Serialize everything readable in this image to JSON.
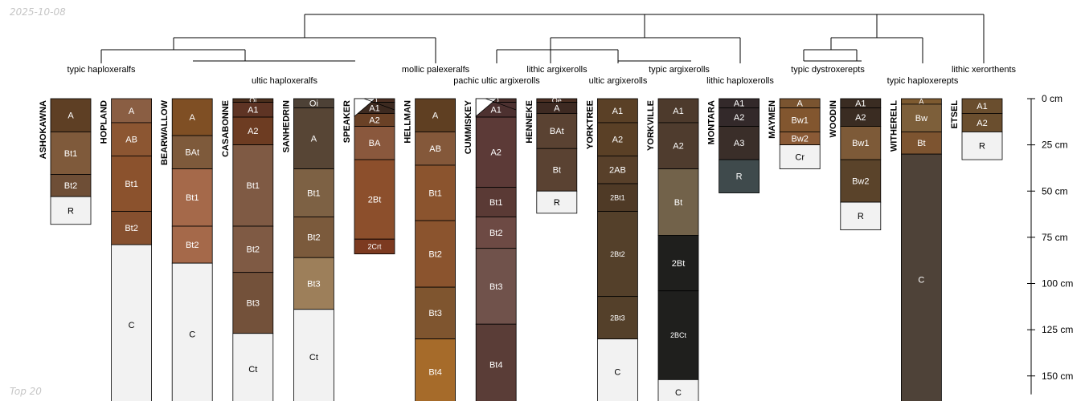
{
  "date_label": "2025-10-08",
  "footer_label": "Top 20",
  "depth_axis": {
    "unit": "cm",
    "max_depth": 160,
    "ticks": [
      {
        "value": 0,
        "label": "0 cm"
      },
      {
        "value": 25,
        "label": "25 cm"
      },
      {
        "value": 50,
        "label": "50 cm"
      },
      {
        "value": 75,
        "label": "75 cm"
      },
      {
        "value": 100,
        "label": "100 cm"
      },
      {
        "value": 125,
        "label": "125 cm"
      },
      {
        "value": 150,
        "label": "150 cm"
      }
    ]
  },
  "taxa": [
    {
      "label": "typic haploxeralfs"
    },
    {
      "label": "ultic haploxeralfs"
    },
    {
      "label": "mollic palexeralfs"
    },
    {
      "label": "pachic ultic argixerolls"
    },
    {
      "label": "lithic argixerolls"
    },
    {
      "label": "ultic argixerolls"
    },
    {
      "label": "typic argixerolls"
    },
    {
      "label": "lithic haploxerolls"
    },
    {
      "label": "typic dystroxerepts"
    },
    {
      "label": "typic haploxerepts"
    },
    {
      "label": "lithic xerorthents"
    }
  ],
  "profiles": [
    {
      "name": "ASHOKAWNA",
      "horizons": [
        {
          "name": "A",
          "top": 0,
          "bottom": 18,
          "color": "#5e3f24"
        },
        {
          "name": "Bt1",
          "top": 18,
          "bottom": 41,
          "color": "#7f5a3b"
        },
        {
          "name": "Bt2",
          "top": 41,
          "bottom": 53,
          "color": "#6e4e36"
        },
        {
          "name": "R",
          "top": 53,
          "bottom": 68,
          "color": "#f2f2f2"
        }
      ]
    },
    {
      "name": "HOPLAND",
      "horizons": [
        {
          "name": "A",
          "top": 0,
          "bottom": 13,
          "color": "#8a5e43"
        },
        {
          "name": "AB",
          "top": 13,
          "bottom": 31,
          "color": "#8c5632"
        },
        {
          "name": "Bt1",
          "top": 31,
          "bottom": 61,
          "color": "#8b522d"
        },
        {
          "name": "Bt2",
          "top": 61,
          "bottom": 79,
          "color": "#86502f"
        },
        {
          "name": "C",
          "top": 79,
          "bottom": 170,
          "color": "#f2f2f2"
        }
      ]
    },
    {
      "name": "BEARWALLOW",
      "horizons": [
        {
          "name": "A",
          "top": 0,
          "bottom": 20,
          "color": "#7f4f24"
        },
        {
          "name": "BAt",
          "top": 20,
          "bottom": 38,
          "color": "#7e5a3b"
        },
        {
          "name": "Bt1",
          "top": 38,
          "bottom": 69,
          "color": "#a5694a"
        },
        {
          "name": "Bt2",
          "top": 69,
          "bottom": 89,
          "color": "#a5694a"
        },
        {
          "name": "C",
          "top": 89,
          "bottom": 170,
          "color": "#f2f2f2"
        }
      ]
    },
    {
      "name": "CASABONNE",
      "horizons": [
        {
          "name": "Oi",
          "top": 0,
          "bottom": 2,
          "color": "#4a2e1c"
        },
        {
          "name": "A1",
          "top": 2,
          "bottom": 10,
          "color": "#5e3424"
        },
        {
          "name": "A2",
          "top": 10,
          "bottom": 25,
          "color": "#6d3c22"
        },
        {
          "name": "Bt1",
          "top": 25,
          "bottom": 69,
          "color": "#7f5a44"
        },
        {
          "name": "Bt2",
          "top": 69,
          "bottom": 94,
          "color": "#7f5a44"
        },
        {
          "name": "Bt3",
          "top": 94,
          "bottom": 127,
          "color": "#73513a"
        },
        {
          "name": "Ct",
          "top": 127,
          "bottom": 170,
          "color": "#f2f2f2"
        }
      ]
    },
    {
      "name": "SANHEDRIN",
      "horizons": [
        {
          "name": "Oi",
          "top": 0,
          "bottom": 5,
          "color": "#4d4136"
        },
        {
          "name": "A",
          "top": 5,
          "bottom": 38,
          "color": "#574535"
        },
        {
          "name": "Bt1",
          "top": 38,
          "bottom": 64,
          "color": "#7d6144"
        },
        {
          "name": "Bt2",
          "top": 64,
          "bottom": 86,
          "color": "#7b5a3c"
        },
        {
          "name": "Bt3",
          "top": 86,
          "bottom": 114,
          "color": "#9d7f5a"
        },
        {
          "name": "Ct",
          "top": 114,
          "bottom": 170,
          "color": "#f2f2f2"
        }
      ]
    },
    {
      "name": "SPEAKER",
      "diagonal": true,
      "horizons": [
        {
          "name": "O",
          "top": 0,
          "bottom": 2,
          "color": "#4b2f22"
        },
        {
          "name": "A1",
          "top": 2,
          "bottom": 8,
          "color": "#3d2a20"
        },
        {
          "name": "A2",
          "top": 8,
          "bottom": 15,
          "color": "#6a4126"
        },
        {
          "name": "BA",
          "top": 15,
          "bottom": 33,
          "color": "#8a583d"
        },
        {
          "name": "2Bt",
          "top": 33,
          "bottom": 76,
          "color": "#8c4f2c"
        },
        {
          "name": "2Crt",
          "top": 76,
          "bottom": 84,
          "color": "#7c3a20"
        }
      ]
    },
    {
      "name": "HELLMAN",
      "horizons": [
        {
          "name": "A",
          "top": 0,
          "bottom": 18,
          "color": "#5f3f22"
        },
        {
          "name": "AB",
          "top": 18,
          "bottom": 36,
          "color": "#84583a"
        },
        {
          "name": "Bt1",
          "top": 36,
          "bottom": 66,
          "color": "#8b542e"
        },
        {
          "name": "Bt2",
          "top": 66,
          "bottom": 102,
          "color": "#8b542e"
        },
        {
          "name": "Bt3",
          "top": 102,
          "bottom": 130,
          "color": "#7f552f"
        },
        {
          "name": "Bt4",
          "top": 130,
          "bottom": 170,
          "color": "#a66b2a"
        }
      ]
    },
    {
      "name": "CUMMISKEY",
      "diagonal": true,
      "horizons": [
        {
          "name": "O",
          "top": 0,
          "bottom": 2,
          "color": "#4a2f2a"
        },
        {
          "name": "A1",
          "top": 2,
          "bottom": 10,
          "color": "#4d3130"
        },
        {
          "name": "A2",
          "top": 10,
          "bottom": 48,
          "color": "#5c3a37"
        },
        {
          "name": "Bt1",
          "top": 48,
          "bottom": 64,
          "color": "#5a3a35"
        },
        {
          "name": "Bt2",
          "top": 64,
          "bottom": 81,
          "color": "#6d4a44"
        },
        {
          "name": "Bt3",
          "top": 81,
          "bottom": 122,
          "color": "#70524b"
        },
        {
          "name": "Bt4",
          "top": 122,
          "bottom": 170,
          "color": "#5a3d37"
        }
      ]
    },
    {
      "name": "HENNEKE",
      "horizons": [
        {
          "name": "Oe",
          "top": 0,
          "bottom": 2,
          "color": "#4a2e22"
        },
        {
          "name": "A",
          "top": 2,
          "bottom": 8,
          "color": "#3e2a22"
        },
        {
          "name": "BAt",
          "top": 8,
          "bottom": 27,
          "color": "#5a4232"
        },
        {
          "name": "Bt",
          "top": 27,
          "bottom": 50,
          "color": "#5a4232"
        },
        {
          "name": "R",
          "top": 50,
          "bottom": 62,
          "color": "#f2f2f2"
        }
      ]
    },
    {
      "name": "YORKTREE",
      "horizons": [
        {
          "name": "A1",
          "top": 0,
          "bottom": 13,
          "color": "#5a4026"
        },
        {
          "name": "A2",
          "top": 13,
          "bottom": 31,
          "color": "#5a4026"
        },
        {
          "name": "2AB",
          "top": 31,
          "bottom": 46,
          "color": "#58402a"
        },
        {
          "name": "2Bt1",
          "top": 46,
          "bottom": 61,
          "color": "#4f3a26"
        },
        {
          "name": "2Bt2",
          "top": 61,
          "bottom": 107,
          "color": "#54402a"
        },
        {
          "name": "2Bt3",
          "top": 107,
          "bottom": 130,
          "color": "#54402a"
        },
        {
          "name": "C",
          "top": 130,
          "bottom": 170,
          "color": "#f2f2f2"
        }
      ]
    },
    {
      "name": "YORKVILLE",
      "horizons": [
        {
          "name": "A1",
          "top": 0,
          "bottom": 13,
          "color": "#4d3a2c"
        },
        {
          "name": "A2",
          "top": 13,
          "bottom": 38,
          "color": "#4f3c2e"
        },
        {
          "name": "Bt",
          "top": 38,
          "bottom": 74,
          "color": "#72624a"
        },
        {
          "name": "2Bt",
          "top": 74,
          "bottom": 104,
          "color": "#1f1f1d"
        },
        {
          "name": "2BCt",
          "top": 104,
          "bottom": 152,
          "color": "#1f1f1d"
        },
        {
          "name": "C",
          "top": 152,
          "bottom": 170,
          "color": "#f2f2f2"
        }
      ]
    },
    {
      "name": "MONTARA",
      "horizons": [
        {
          "name": "A1",
          "top": 0,
          "bottom": 5,
          "color": "#33292a"
        },
        {
          "name": "A2",
          "top": 5,
          "bottom": 15,
          "color": "#33292a"
        },
        {
          "name": "A3",
          "top": 15,
          "bottom": 33,
          "color": "#3a2e29"
        },
        {
          "name": "R",
          "top": 33,
          "bottom": 51,
          "color": "#3f4a4c"
        }
      ]
    },
    {
      "name": "MAYMEN",
      "horizons": [
        {
          "name": "A",
          "top": 0,
          "bottom": 5,
          "color": "#7a5430"
        },
        {
          "name": "Bw1",
          "top": 5,
          "bottom": 18,
          "color": "#82562f"
        },
        {
          "name": "Bw2",
          "top": 18,
          "bottom": 25,
          "color": "#8a5a36"
        },
        {
          "name": "Cr",
          "top": 25,
          "bottom": 38,
          "color": "#f2f2f2"
        }
      ]
    },
    {
      "name": "WOODIN",
      "horizons": [
        {
          "name": "A1",
          "top": 0,
          "bottom": 5,
          "color": "#3a2c22"
        },
        {
          "name": "A2",
          "top": 5,
          "bottom": 15,
          "color": "#3a2c22"
        },
        {
          "name": "Bw1",
          "top": 15,
          "bottom": 33,
          "color": "#7d5a38"
        },
        {
          "name": "Bw2",
          "top": 33,
          "bottom": 56,
          "color": "#5a432a"
        },
        {
          "name": "R",
          "top": 56,
          "bottom": 71,
          "color": "#f2f2f2"
        }
      ]
    },
    {
      "name": "WITHERELL",
      "horizons": [
        {
          "name": "A",
          "top": 0,
          "bottom": 3,
          "color": "#7d5a30"
        },
        {
          "name": "Bw",
          "top": 3,
          "bottom": 18,
          "color": "#7d5f3a"
        },
        {
          "name": "Bt",
          "top": 18,
          "bottom": 30,
          "color": "#7d5430"
        },
        {
          "name": "C",
          "top": 30,
          "bottom": 170,
          "color": "#4e4238"
        }
      ]
    },
    {
      "name": "ETSEL",
      "horizons": [
        {
          "name": "A1",
          "top": 0,
          "bottom": 8,
          "color": "#6a4e2e"
        },
        {
          "name": "A2",
          "top": 8,
          "bottom": 18,
          "color": "#6a4e2e"
        },
        {
          "name": "R",
          "top": 18,
          "bottom": 33,
          "color": "#f2f2f2"
        }
      ]
    }
  ]
}
